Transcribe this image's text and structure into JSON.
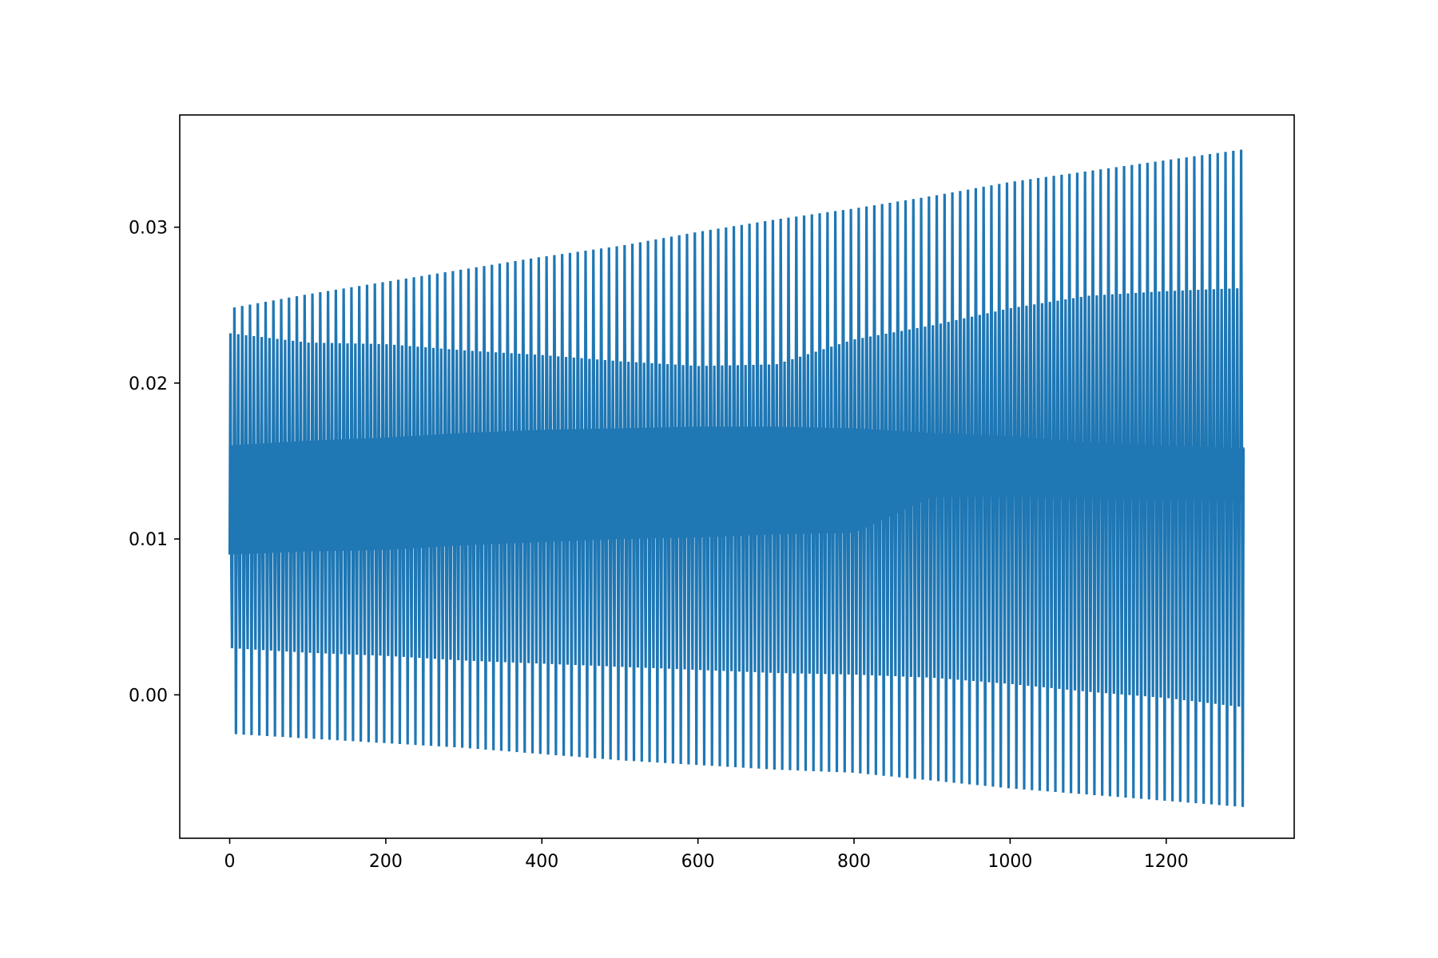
{
  "chart_data": {
    "type": "line",
    "title": "",
    "xlabel": "",
    "ylabel": "",
    "xlim": [
      -64,
      1364
    ],
    "ylim": [
      -0.0092,
      0.0372
    ],
    "x_ticks": [
      0,
      200,
      400,
      600,
      800,
      1000,
      1200
    ],
    "y_ticks": [
      0.0,
      0.01,
      0.02,
      0.03
    ],
    "x_tick_labels": [
      "0",
      "200",
      "400",
      "600",
      "800",
      "1000",
      "1200"
    ],
    "y_tick_labels": [
      "0.00",
      "0.01",
      "0.02",
      "0.03"
    ],
    "grid": false,
    "legend": "none",
    "series": [
      {
        "color": "#1f77b4",
        "x_range": [
          0,
          1300
        ],
        "cycles": 130,
        "envelope": {
          "x": [
            0,
            100,
            200,
            300,
            400,
            500,
            600,
            700,
            800,
            900,
            1000,
            1100,
            1200,
            1300
          ],
          "peak_high": [
            0.0248,
            0.0257,
            0.0265,
            0.0273,
            0.0281,
            0.0288,
            0.0297,
            0.0305,
            0.0312,
            0.032,
            0.0329,
            0.0336,
            0.0343,
            0.035
          ],
          "peak_mid": [
            0.0232,
            0.0226,
            0.0225,
            0.0221,
            0.0218,
            0.0214,
            0.0211,
            0.0212,
            0.0228,
            0.0237,
            0.0248,
            0.0256,
            0.0259,
            0.0261
          ],
          "band_high": [
            0.016,
            0.0163,
            0.0165,
            0.0168,
            0.017,
            0.0171,
            0.0172,
            0.0172,
            0.0171,
            0.0168,
            0.0166,
            0.0162,
            0.016,
            0.0158
          ],
          "band_low": [
            0.009,
            0.0092,
            0.0093,
            0.0096,
            0.0098,
            0.01,
            0.0101,
            0.0103,
            0.0104,
            0.0127,
            0.0127,
            0.0126,
            0.0125,
            0.0124
          ],
          "trough_mid": [
            0.003,
            0.0027,
            0.0025,
            0.0022,
            0.002,
            0.0018,
            0.0016,
            0.0014,
            0.0013,
            0.0011,
            0.0007,
            0.0002,
            -0.0002,
            -0.0008
          ],
          "trough_low": [
            -0.0025,
            -0.0028,
            -0.0031,
            -0.0034,
            -0.0038,
            -0.0042,
            -0.0045,
            -0.0048,
            -0.005,
            -0.0055,
            -0.006,
            -0.0064,
            -0.0068,
            -0.0072
          ]
        }
      }
    ]
  }
}
